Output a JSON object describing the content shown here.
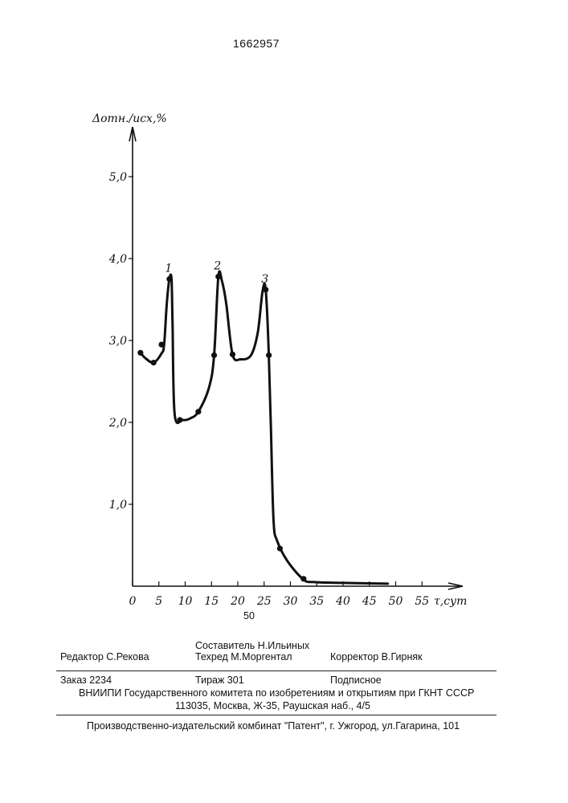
{
  "document": {
    "patent_number": "1662957",
    "page_number": "50"
  },
  "chart_data": {
    "type": "line",
    "ylabel": "Δотн./исх,%",
    "xlabel": "τ,сут",
    "xlim": [
      0,
      58
    ],
    "ylim": [
      0,
      5.9
    ],
    "x_ticks": [
      "0",
      "5",
      "10",
      "15",
      "20",
      "25",
      "30",
      "35",
      "40",
      "45",
      "50",
      "55"
    ],
    "y_ticks": [
      "1,0",
      "2,0",
      "3,0",
      "4,0",
      "5,0"
    ],
    "curve": {
      "x": [
        1.5,
        2.5,
        4.0,
        5.5,
        6.0,
        6.5,
        7.0,
        7.4,
        7.6,
        8.0,
        9.5,
        11.0,
        12.5,
        14.5,
        15.5,
        16.3,
        17.0,
        17.8,
        19.0,
        20.5,
        22.5,
        23.8,
        24.7,
        25.3,
        25.9,
        26.3,
        26.8,
        27.5,
        29.5,
        32.5,
        34.5,
        40.0,
        48.5
      ],
      "y": [
        2.85,
        2.78,
        2.73,
        2.84,
        2.95,
        3.45,
        3.75,
        3.75,
        3.2,
        2.1,
        2.03,
        2.05,
        2.13,
        2.42,
        2.82,
        3.78,
        3.72,
        3.45,
        2.83,
        2.77,
        2.82,
        3.1,
        3.6,
        3.62,
        2.82,
        1.9,
        0.8,
        0.55,
        0.3,
        0.08,
        0.05,
        0.04,
        0.03
      ]
    },
    "markers": {
      "x": [
        1.5,
        4.0,
        5.5,
        7.0,
        9.0,
        12.5,
        15.5,
        16.3,
        19.0,
        25.3,
        25.9,
        28.0,
        32.5
      ],
      "y": [
        2.85,
        2.73,
        2.95,
        3.75,
        2.03,
        2.13,
        2.82,
        3.78,
        2.83,
        3.62,
        2.82,
        0.46,
        0.09
      ]
    },
    "peak_labels": [
      {
        "text": "1",
        "x": 7.0,
        "y": 3.75
      },
      {
        "text": "2",
        "x": 16.3,
        "y": 3.78
      },
      {
        "text": "3",
        "x": 25.3,
        "y": 3.62
      }
    ]
  },
  "footer": {
    "editor": "Редактор  С.Рекова",
    "compiler": "Составитель  Н.Ильиных",
    "techred": "Техред М.Моргентал",
    "corrector": "Корректор В.Гирняк",
    "order": "Заказ  2234",
    "circulation": "Тираж  301",
    "subscription": "Подписное",
    "vniipi": "ВНИИПИ Государственного комитета по изобретениям и открытиям при ГКНТ СССР",
    "address": "113035, Москва, Ж-35, Раушская наб., 4/5",
    "publisher": "Производственно-издательский комбинат \"Патент\", г. Ужгород, ул.Гагарина, 101"
  }
}
